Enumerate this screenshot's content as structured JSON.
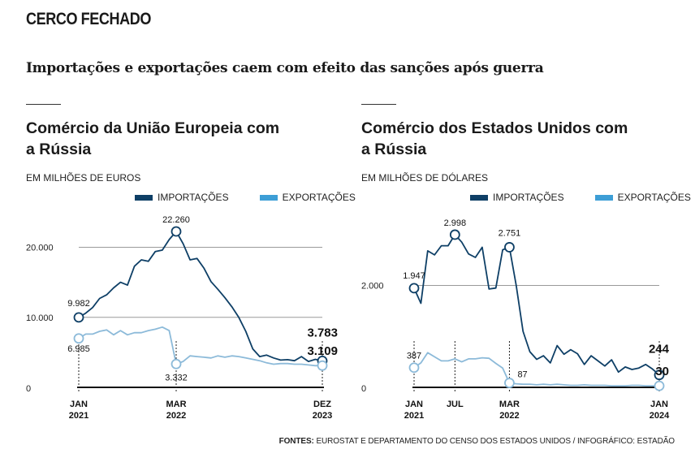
{
  "kicker": "CERCO FECHADO",
  "subtitle": "Importações e exportações caem com efeito das sanções após guerra",
  "sources_label": "FONTES:",
  "sources_text": " EUROSTAT E  DEPARTAMENTO DO CENSO DOS ESTADOS UNIDOS  / INFOGRÁFICO: ESTADÃO",
  "colors": {
    "imports": "#0e3f66",
    "exports": "#8cbad9",
    "legend_exports": "#3d9ed6"
  },
  "chart_data": [
    {
      "type": "line",
      "title_line1": "Comércio da União Europeia com",
      "title_line2": "a Rússia",
      "unit": "EM MILHÕES DE EUROS",
      "ylim": [
        0,
        24000
      ],
      "y_ticks": [
        {
          "value": 0,
          "label": "0"
        },
        {
          "value": 10000,
          "label": "10.000"
        },
        {
          "value": 20000,
          "label": "20.000"
        }
      ],
      "x_ticks": [
        {
          "index": 0,
          "line1": "JAN",
          "line2": "2021"
        },
        {
          "index": 14,
          "line1": "MAR",
          "line2": "2022"
        },
        {
          "index": 35,
          "line1": "DEZ",
          "line2": "2023"
        }
      ],
      "series": [
        {
          "name": "IMPORTAÇÕES",
          "values": [
            9982,
            10600,
            11400,
            12700,
            13200,
            14200,
            15000,
            14600,
            17300,
            18200,
            18000,
            19400,
            19600,
            21100,
            22260,
            20500,
            18200,
            18400,
            17000,
            15100,
            14000,
            12800,
            11500,
            10000,
            8000,
            5500,
            4400,
            4600,
            4200,
            3900,
            3950,
            3800,
            4400,
            3700,
            4000,
            3783
          ]
        },
        {
          "name": "EXPORTAÇÕES",
          "values": [
            6985,
            7600,
            7600,
            8000,
            8200,
            7500,
            8100,
            7500,
            7800,
            7800,
            8100,
            8300,
            8600,
            8100,
            3332,
            3700,
            4500,
            4400,
            4300,
            4200,
            4500,
            4300,
            4500,
            4400,
            4200,
            4000,
            3800,
            3500,
            3300,
            3400,
            3400,
            3300,
            3300,
            3200,
            3100,
            3109
          ]
        }
      ],
      "annotations": [
        {
          "series": 0,
          "index": 0,
          "label": "9.982"
        },
        {
          "series": 1,
          "index": 0,
          "label": "6.985"
        },
        {
          "series": 0,
          "index": 14,
          "label": "22.260"
        },
        {
          "series": 1,
          "index": 14,
          "label": "3.332"
        },
        {
          "series": 0,
          "index": 35,
          "label": "3.783"
        },
        {
          "series": 1,
          "index": 35,
          "label": "3.109"
        }
      ]
    },
    {
      "type": "line",
      "title_line1": "Comércio dos Estados Unidos com",
      "title_line2": "a Rússia",
      "unit": "EM MILHÕES DE DÓLARES",
      "ylim": [
        0,
        3300
      ],
      "y_ticks": [
        {
          "value": 0,
          "label": "0"
        },
        {
          "value": 2000,
          "label": "2.000"
        }
      ],
      "x_ticks": [
        {
          "index": 0,
          "line1": "JAN",
          "line2": "2021"
        },
        {
          "index": 6,
          "line1": "JUL",
          "line2": ""
        },
        {
          "index": 14,
          "line1": "MAR",
          "line2": "2022"
        },
        {
          "index": 36,
          "line1": "JAN",
          "line2": "2024"
        }
      ],
      "series": [
        {
          "name": "IMPORTAÇÕES",
          "values": [
            1947,
            1650,
            2680,
            2600,
            2780,
            2780,
            2998,
            2850,
            2620,
            2550,
            2750,
            1930,
            1950,
            2700,
            2751,
            2000,
            1100,
            700,
            550,
            620,
            480,
            820,
            650,
            740,
            660,
            450,
            620,
            520,
            420,
            540,
            300,
            400,
            350,
            380,
            450,
            360,
            244
          ]
        },
        {
          "name": "EXPORTAÇÕES",
          "values": [
            387,
            480,
            680,
            600,
            520,
            520,
            560,
            500,
            560,
            560,
            580,
            570,
            470,
            380,
            87,
            70,
            60,
            60,
            50,
            60,
            50,
            60,
            50,
            40,
            40,
            50,
            40,
            40,
            40,
            30,
            30,
            30,
            40,
            40,
            30,
            30,
            30
          ]
        }
      ],
      "annotations": [
        {
          "series": 0,
          "index": 0,
          "label": "1.947"
        },
        {
          "series": 1,
          "index": 0,
          "label": "387"
        },
        {
          "series": 0,
          "index": 6,
          "label": "2.998"
        },
        {
          "series": 0,
          "index": 14,
          "label": "2.751"
        },
        {
          "series": 1,
          "index": 14,
          "label": "87"
        },
        {
          "series": 0,
          "index": 36,
          "label": "244"
        },
        {
          "series": 1,
          "index": 36,
          "label": "30"
        }
      ]
    }
  ]
}
